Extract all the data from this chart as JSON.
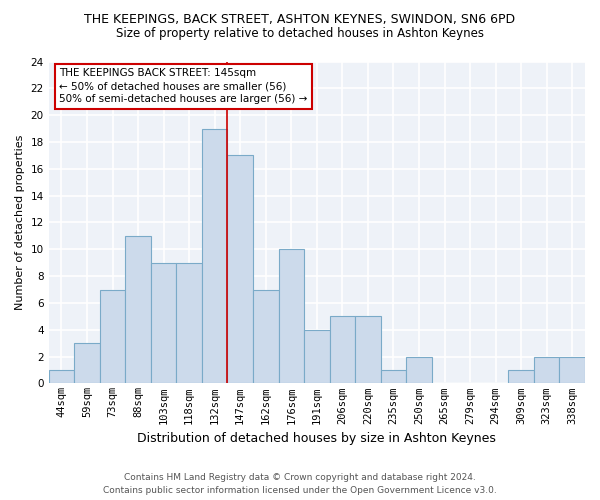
{
  "title": "THE KEEPINGS, BACK STREET, ASHTON KEYNES, SWINDON, SN6 6PD",
  "subtitle": "Size of property relative to detached houses in Ashton Keynes",
  "xlabel": "Distribution of detached houses by size in Ashton Keynes",
  "ylabel": "Number of detached properties",
  "bar_labels": [
    "44sqm",
    "59sqm",
    "73sqm",
    "88sqm",
    "103sqm",
    "118sqm",
    "132sqm",
    "147sqm",
    "162sqm",
    "176sqm",
    "191sqm",
    "206sqm",
    "220sqm",
    "235sqm",
    "250sqm",
    "265sqm",
    "279sqm",
    "294sqm",
    "309sqm",
    "323sqm",
    "338sqm"
  ],
  "bar_values": [
    1,
    3,
    7,
    11,
    9,
    9,
    19,
    17,
    7,
    10,
    4,
    5,
    5,
    1,
    2,
    0,
    0,
    0,
    1,
    2,
    2
  ],
  "bar_color": "#ccdaeb",
  "bar_edge_color": "#7aaac8",
  "vline_x_index": 6.5,
  "vline_color": "#cc0000",
  "annotation_title": "THE KEEPINGS BACK STREET: 145sqm",
  "annotation_line1": "← 50% of detached houses are smaller (56)",
  "annotation_line2": "50% of semi-detached houses are larger (56) →",
  "annotation_box_facecolor": "#ffffff",
  "annotation_box_edgecolor": "#cc0000",
  "ylim": [
    0,
    24
  ],
  "yticks": [
    0,
    2,
    4,
    6,
    8,
    10,
    12,
    14,
    16,
    18,
    20,
    22,
    24
  ],
  "footer_line1": "Contains HM Land Registry data © Crown copyright and database right 2024.",
  "footer_line2": "Contains public sector information licensed under the Open Government Licence v3.0.",
  "bg_color": "#ffffff",
  "plot_bg_color": "#eef2f8",
  "grid_color": "#ffffff",
  "title_fontsize": 9,
  "subtitle_fontsize": 8.5,
  "ylabel_fontsize": 8,
  "xlabel_fontsize": 9,
  "tick_fontsize": 7.5,
  "footer_fontsize": 6.5
}
